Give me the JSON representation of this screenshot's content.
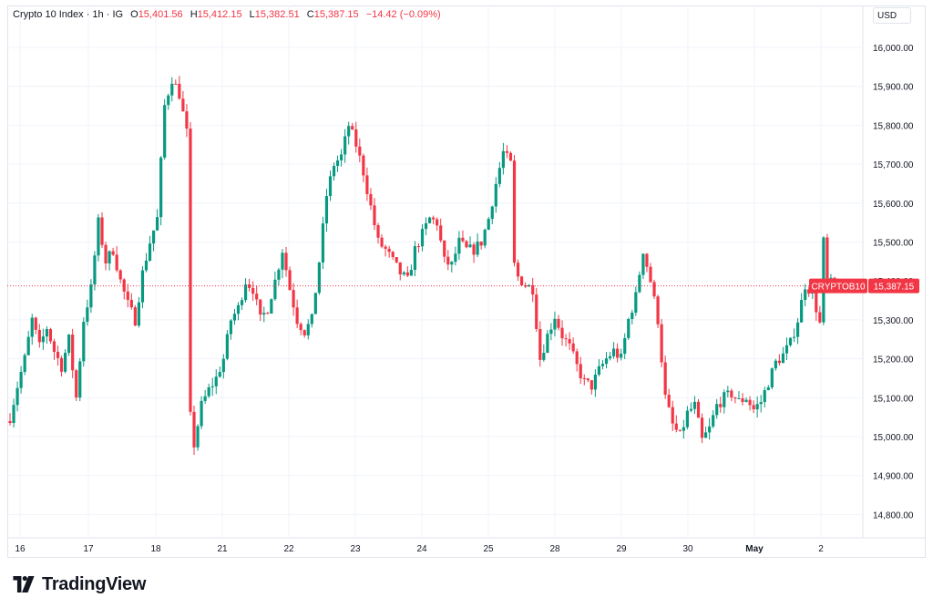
{
  "legend": {
    "symbol": "Crypto 10 Index · 1h · IG",
    "o_label": "O",
    "o": "15,401.56",
    "h_label": "H",
    "h": "15,412.15",
    "l_label": "L",
    "l": "15,382.51",
    "c_label": "C",
    "c": "15,387.15",
    "change": "−14.42 (−0.09%)"
  },
  "currency": "USD",
  "logo_text": "TradingView",
  "colors": {
    "up": "#089981",
    "down": "#f23645",
    "grid": "#f0f3fa",
    "axis_text": "#131722"
  },
  "chart_data": {
    "type": "candlestick",
    "x_tick_labels": [
      "16",
      "17",
      "18",
      "21",
      "22",
      "23",
      "24",
      "25",
      "28",
      "29",
      "30",
      "May",
      "2"
    ],
    "y_tick_labels": [
      "16,000.00",
      "15,900.00",
      "15,800.00",
      "15,700.00",
      "15,600.00",
      "15,500.00",
      "15,400.00",
      "15,300.00",
      "15,200.00",
      "15,100.00",
      "15,000.00",
      "14,900.00",
      "14,800.00"
    ],
    "ylim": [
      14760,
      16080
    ],
    "last_price": 15387.15,
    "last_price_label": "15,387.15",
    "symbol_tag": "CRYPTOB10",
    "anchors": [
      [
        0,
        15050
      ],
      [
        2,
        15130
      ],
      [
        4,
        15200
      ],
      [
        6,
        15300
      ],
      [
        8,
        15230
      ],
      [
        10,
        15280
      ],
      [
        12,
        15220
      ],
      [
        14,
        15180
      ],
      [
        16,
        15250
      ],
      [
        18,
        15100
      ],
      [
        20,
        15300
      ],
      [
        22,
        15380
      ],
      [
        24,
        15550
      ],
      [
        26,
        15450
      ],
      [
        28,
        15480
      ],
      [
        30,
        15400
      ],
      [
        32,
        15340
      ],
      [
        34,
        15300
      ],
      [
        36,
        15420
      ],
      [
        38,
        15500
      ],
      [
        40,
        15560
      ],
      [
        42,
        15850
      ],
      [
        44,
        15920
      ],
      [
        46,
        15880
      ],
      [
        48,
        15780
      ],
      [
        49,
        15050
      ],
      [
        50,
        14980
      ],
      [
        52,
        15080
      ],
      [
        54,
        15120
      ],
      [
        56,
        15150
      ],
      [
        58,
        15200
      ],
      [
        60,
        15300
      ],
      [
        62,
        15330
      ],
      [
        64,
        15400
      ],
      [
        66,
        15380
      ],
      [
        68,
        15300
      ],
      [
        70,
        15330
      ],
      [
        72,
        15400
      ],
      [
        74,
        15480
      ],
      [
        76,
        15380
      ],
      [
        78,
        15300
      ],
      [
        80,
        15270
      ],
      [
        82,
        15300
      ],
      [
        84,
        15450
      ],
      [
        86,
        15620
      ],
      [
        88,
        15700
      ],
      [
        90,
        15720
      ],
      [
        92,
        15800
      ],
      [
        94,
        15750
      ],
      [
        96,
        15680
      ],
      [
        98,
        15590
      ],
      [
        100,
        15500
      ],
      [
        102,
        15480
      ],
      [
        104,
        15450
      ],
      [
        106,
        15420
      ],
      [
        108,
        15400
      ],
      [
        110,
        15480
      ],
      [
        112,
        15520
      ],
      [
        114,
        15560
      ],
      [
        116,
        15550
      ],
      [
        118,
        15450
      ],
      [
        120,
        15440
      ],
      [
        122,
        15500
      ],
      [
        124,
        15480
      ],
      [
        126,
        15480
      ],
      [
        128,
        15500
      ],
      [
        130,
        15560
      ],
      [
        132,
        15650
      ],
      [
        134,
        15730
      ],
      [
        136,
        15700
      ],
      [
        137,
        15440
      ],
      [
        138,
        15410
      ],
      [
        140,
        15390
      ],
      [
        142,
        15380
      ],
      [
        144,
        15200
      ],
      [
        146,
        15260
      ],
      [
        148,
        15310
      ],
      [
        150,
        15260
      ],
      [
        152,
        15230
      ],
      [
        154,
        15180
      ],
      [
        156,
        15140
      ],
      [
        158,
        15130
      ],
      [
        160,
        15170
      ],
      [
        162,
        15200
      ],
      [
        164,
        15220
      ],
      [
        166,
        15200
      ],
      [
        168,
        15300
      ],
      [
        170,
        15360
      ],
      [
        172,
        15480
      ],
      [
        174,
        15400
      ],
      [
        176,
        15300
      ],
      [
        178,
        15100
      ],
      [
        180,
        15030
      ],
      [
        182,
        15000
      ],
      [
        184,
        15060
      ],
      [
        186,
        15080
      ],
      [
        188,
        14990
      ],
      [
        190,
        15020
      ],
      [
        192,
        15080
      ],
      [
        194,
        15100
      ],
      [
        196,
        15110
      ],
      [
        198,
        15090
      ],
      [
        200,
        15100
      ],
      [
        202,
        15070
      ],
      [
        204,
        15090
      ],
      [
        206,
        15140
      ],
      [
        208,
        15190
      ],
      [
        210,
        15210
      ],
      [
        212,
        15240
      ],
      [
        214,
        15300
      ],
      [
        216,
        15390
      ],
      [
        218,
        15370
      ],
      [
        220,
        15290
      ],
      [
        221,
        15500
      ],
      [
        222,
        15400
      ],
      [
        224,
        15387
      ]
    ]
  }
}
